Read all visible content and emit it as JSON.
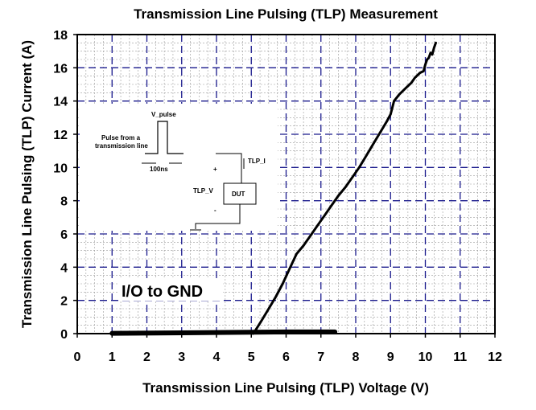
{
  "chart_data": {
    "type": "line",
    "title": "Transmission Line Pulsing (TLP) Measurement",
    "xlabel": "Transmission Line Pulsing (TLP) Voltage (V)",
    "ylabel": "Transmission Line Pulsing (TLP) Current (A)",
    "xlim": [
      0,
      12
    ],
    "ylim": [
      0,
      18
    ],
    "xticks": [
      "0",
      "1",
      "2",
      "3",
      "4",
      "5",
      "6",
      "7",
      "8",
      "9",
      "10",
      "11",
      "12"
    ],
    "yticks": [
      "0",
      "2",
      "4",
      "6",
      "8",
      "10",
      "12",
      "14",
      "16",
      "18"
    ],
    "grid": true,
    "series": [
      {
        "x": [
          1.0,
          3.0,
          5.0,
          6.0,
          7.4
        ],
        "y": [
          0.02,
          0.05,
          0.08,
          0.1,
          0.1
        ]
      },
      {
        "x": [
          5.05,
          5.12,
          5.3,
          5.5,
          5.7,
          5.9,
          6.1,
          6.3,
          6.5,
          6.7,
          6.9,
          7.1,
          7.3,
          7.5,
          7.7,
          7.9,
          8.1,
          8.3,
          8.5,
          8.7,
          8.9,
          9.0,
          9.1,
          9.25,
          9.45,
          9.6,
          9.7,
          9.85,
          9.95,
          10.0,
          10.05,
          10.1,
          10.15,
          10.2,
          10.25,
          10.3
        ],
        "y": [
          0.0,
          0.2,
          0.8,
          1.5,
          2.2,
          3.0,
          3.9,
          4.8,
          5.3,
          5.9,
          6.5,
          7.1,
          7.7,
          8.3,
          8.8,
          9.4,
          10.0,
          10.7,
          11.4,
          12.1,
          12.8,
          13.2,
          14.0,
          14.4,
          14.8,
          15.1,
          15.4,
          15.7,
          15.8,
          16.2,
          16.5,
          16.6,
          16.9,
          16.8,
          17.2,
          17.5
        ]
      }
    ],
    "annotations": [
      "I/O to GND"
    ],
    "inset": {
      "pulse_label": "V_pulse",
      "source_label_line1": "Pulse from a",
      "source_label_line2": "transmission  line",
      "width_label": "100ns",
      "current_label": "TLP_I",
      "voltage_label": "TLP_V",
      "plus_label": "+",
      "minus_label": "-",
      "dut_label": "DUT"
    },
    "colors": {
      "line": "#000000",
      "major_grid": "#1a1a8c",
      "minor_grid": "#9a9a9a"
    }
  }
}
